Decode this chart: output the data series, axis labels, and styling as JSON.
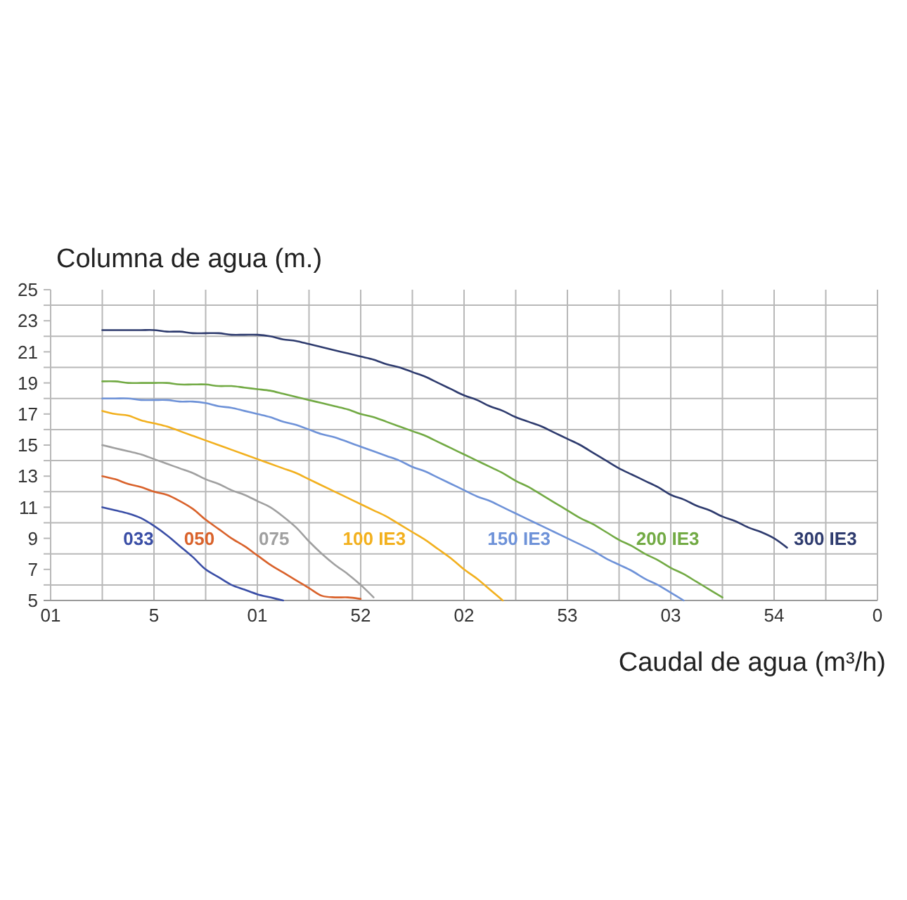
{
  "chart_data": {
    "type": "line",
    "xlabel": "Caudal de agua (m³/h)",
    "ylabel": "Columna de agua (m.)",
    "categories": [
      "01",
      null,
      null,
      null,
      null,
      null,
      null,
      null,
      "5",
      null,
      null,
      null,
      null,
      null,
      null,
      null,
      "01",
      null,
      null,
      null,
      null,
      null,
      null,
      null,
      "52",
      null,
      null,
      null,
      null,
      null,
      null,
      null,
      "02",
      null,
      null,
      null,
      null,
      null,
      null,
      null,
      "53",
      null,
      null,
      null,
      null,
      null,
      null,
      null,
      "03",
      null,
      null,
      null,
      null,
      null,
      null,
      null,
      "54",
      null,
      null,
      null,
      null,
      null,
      null,
      null,
      "0"
    ],
    "ylim": [
      5,
      25
    ],
    "yticks": [
      5,
      {
        "value": 6,
        "label": null
      },
      7,
      {
        "value": 8,
        "label": null
      },
      9,
      {
        "value": 10,
        "label": null
      },
      11,
      {
        "value": 12,
        "label": null
      },
      13,
      {
        "value": 14,
        "label": null
      },
      15,
      {
        "value": 16,
        "label": null
      },
      17,
      {
        "value": 18,
        "label": null
      },
      19,
      {
        "value": 20,
        "label": null
      },
      21,
      {
        "value": 22,
        "label": null
      },
      23,
      {
        "value": 24,
        "label": null
      },
      25
    ],
    "grid": true,
    "series": [
      {
        "name": "033",
        "color": "#3a4ea6",
        "values": [
          null,
          null,
          null,
          null,
          11.0,
          10.8,
          10.6,
          10.3,
          9.8,
          9.2,
          8.5,
          7.8,
          7.0,
          6.5,
          6.0,
          5.7,
          5.4,
          5.2,
          5.0,
          null,
          null,
          null,
          null,
          null,
          null,
          null,
          null,
          null,
          null,
          null,
          null,
          null,
          null,
          null,
          null,
          null,
          null,
          null,
          null,
          null,
          null,
          null,
          null,
          null,
          null,
          null,
          null,
          null,
          null,
          null,
          null,
          null,
          null,
          null,
          null,
          null,
          null,
          null,
          null,
          null,
          null,
          null,
          null,
          null,
          null
        ]
      },
      {
        "name": "050",
        "color": "#d9622b",
        "values": [
          null,
          null,
          null,
          null,
          13.0,
          12.8,
          12.5,
          12.3,
          12.0,
          11.8,
          11.4,
          10.9,
          10.2,
          9.6,
          9.0,
          8.5,
          7.9,
          7.3,
          6.8,
          6.3,
          5.8,
          5.3,
          5.2,
          5.2,
          5.1,
          null,
          null,
          null,
          null,
          null,
          null,
          null,
          null,
          null,
          null,
          null,
          null,
          null,
          null,
          null,
          null,
          null,
          null,
          null,
          null,
          null,
          null,
          null,
          null,
          null,
          null,
          null,
          null,
          null,
          null,
          null,
          null,
          null,
          null,
          null,
          null,
          null,
          null,
          null,
          null
        ]
      },
      {
        "name": "075",
        "color": "#a0a0a0",
        "values": [
          null,
          null,
          null,
          null,
          15.0,
          14.8,
          14.6,
          14.4,
          14.1,
          13.8,
          13.5,
          13.2,
          12.8,
          12.5,
          12.1,
          11.8,
          11.4,
          11.0,
          10.4,
          9.7,
          8.8,
          8.0,
          7.3,
          6.7,
          6.0,
          5.2,
          null,
          null,
          null,
          null,
          null,
          null,
          null,
          null,
          null,
          null,
          null,
          null,
          null,
          null,
          null,
          null,
          null,
          null,
          null,
          null,
          null,
          null,
          null,
          null,
          null,
          null,
          null,
          null,
          null,
          null,
          null,
          null,
          null,
          null,
          null,
          null,
          null,
          null,
          null
        ]
      },
      {
        "name": "100 IE3",
        "color": "#f2b01e",
        "values": [
          null,
          null,
          null,
          null,
          17.2,
          17.0,
          16.9,
          16.6,
          16.4,
          16.2,
          15.9,
          15.6,
          15.3,
          15.0,
          14.7,
          14.4,
          14.1,
          13.8,
          13.5,
          13.2,
          12.8,
          12.4,
          12.0,
          11.6,
          11.2,
          10.8,
          10.4,
          9.9,
          9.4,
          8.9,
          8.3,
          7.7,
          7.0,
          6.4,
          5.7,
          5.0,
          null,
          null,
          null,
          null,
          null,
          null,
          null,
          null,
          null,
          null,
          null,
          null,
          null,
          null,
          null,
          null,
          null,
          null,
          null,
          null,
          null,
          null,
          null,
          null,
          null,
          null,
          null,
          null,
          null
        ]
      },
      {
        "name": "150 IE3",
        "color": "#6e92d8",
        "values": [
          null,
          null,
          null,
          null,
          18.0,
          18.0,
          18.0,
          17.9,
          17.9,
          17.9,
          17.8,
          17.8,
          17.7,
          17.5,
          17.4,
          17.2,
          17.0,
          16.8,
          16.5,
          16.3,
          16.0,
          15.7,
          15.5,
          15.2,
          14.9,
          14.6,
          14.3,
          14.0,
          13.6,
          13.3,
          12.9,
          12.5,
          12.1,
          11.7,
          11.4,
          11.0,
          10.6,
          10.2,
          9.8,
          9.4,
          9.0,
          8.6,
          8.2,
          7.7,
          7.3,
          6.9,
          6.4,
          6.0,
          5.5,
          5.0,
          null,
          null,
          null,
          null,
          null,
          null,
          null,
          null,
          null,
          null,
          null,
          null,
          null,
          null,
          null
        ]
      },
      {
        "name": "200 IE3",
        "color": "#72aa44",
        "values": [
          null,
          null,
          null,
          null,
          19.1,
          19.1,
          19.0,
          19.0,
          19.0,
          19.0,
          18.9,
          18.9,
          18.9,
          18.8,
          18.8,
          18.7,
          18.6,
          18.5,
          18.3,
          18.1,
          17.9,
          17.7,
          17.5,
          17.3,
          17.0,
          16.8,
          16.5,
          16.2,
          15.9,
          15.6,
          15.2,
          14.8,
          14.4,
          14.0,
          13.6,
          13.2,
          12.7,
          12.3,
          11.8,
          11.3,
          10.8,
          10.3,
          9.9,
          9.4,
          8.9,
          8.5,
          8.0,
          7.6,
          7.1,
          6.7,
          6.2,
          5.7,
          5.2,
          null,
          null,
          null,
          null,
          null,
          null,
          null,
          null,
          null,
          null,
          null,
          null
        ]
      },
      {
        "name": "300 IE3",
        "color": "#2e3b6e",
        "values": [
          null,
          null,
          null,
          null,
          22.4,
          22.4,
          22.4,
          22.4,
          22.4,
          22.3,
          22.3,
          22.2,
          22.2,
          22.2,
          22.1,
          22.1,
          22.1,
          22.0,
          21.8,
          21.7,
          21.5,
          21.3,
          21.1,
          20.9,
          20.7,
          20.5,
          20.2,
          20.0,
          19.7,
          19.4,
          19.0,
          18.6,
          18.2,
          17.9,
          17.5,
          17.2,
          16.8,
          16.5,
          16.2,
          15.8,
          15.4,
          15.0,
          14.5,
          14.0,
          13.5,
          13.1,
          12.7,
          12.3,
          11.8,
          11.5,
          11.1,
          10.8,
          10.4,
          10.1,
          9.7,
          9.4,
          9.0,
          8.4,
          null,
          null,
          null,
          null,
          null,
          null,
          null
        ]
      }
    ]
  }
}
